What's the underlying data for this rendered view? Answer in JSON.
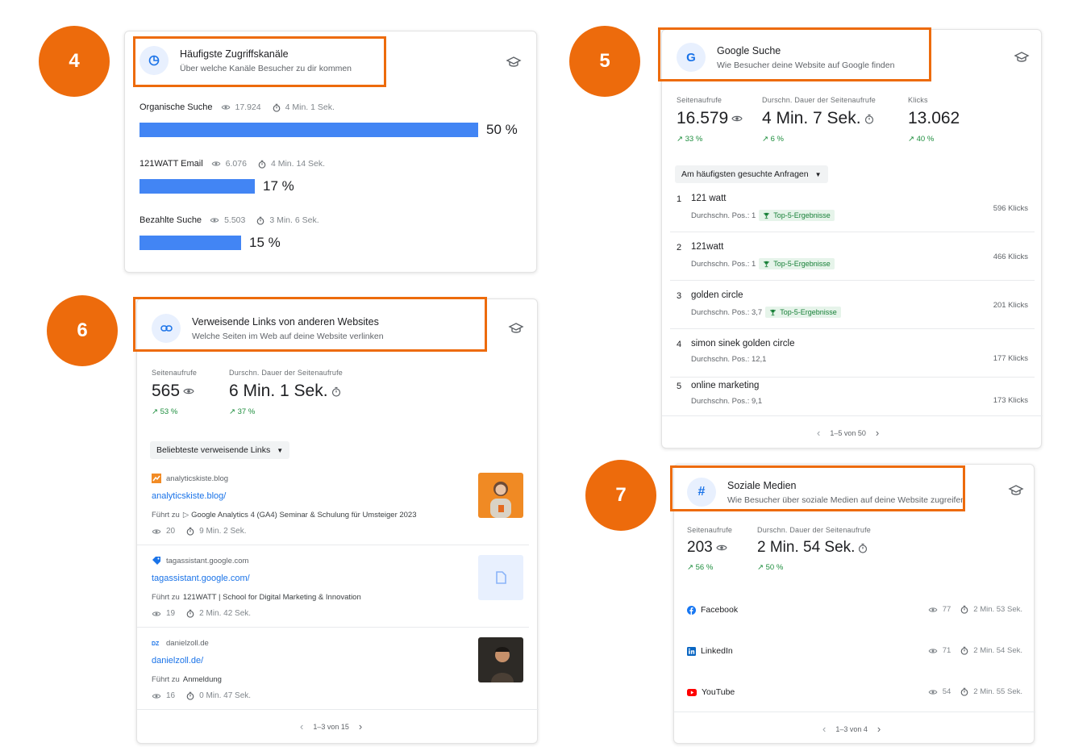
{
  "badges": [
    "4",
    "5",
    "6",
    "7"
  ],
  "channels": {
    "title": "Häufigste Zugriffskanäle",
    "subtitle": "Über welche Kanäle Besucher zu dir kommen",
    "items": [
      {
        "name": "Organische Suche",
        "views": "17.924",
        "duration": "4 Min. 1 Sek.",
        "percent_label": "50 %",
        "share": 0.5
      },
      {
        "name": "121WATT Email",
        "views": "6.076",
        "duration": "4 Min. 14 Sek.",
        "percent_label": "17 %",
        "share": 0.17
      },
      {
        "name": "Bezahlte Suche",
        "views": "5.503",
        "duration": "3 Min. 6 Sek.",
        "percent_label": "15 %",
        "share": 0.15
      }
    ],
    "colors": {
      "bar": "#4285f4"
    }
  },
  "google": {
    "icon_letter": "G",
    "title": "Google Suche",
    "subtitle": "Wie Besucher deine Website auf Google finden",
    "metrics": [
      {
        "label": "Seitenaufrufe",
        "value": "16.579",
        "trend": "33 %"
      },
      {
        "label": "Durschn. Dauer der Seitenaufrufe",
        "value": "4 Min. 7 Sek.",
        "trend": "6 %"
      },
      {
        "label": "Klicks",
        "value": "13.062",
        "trend": "40 %"
      }
    ],
    "dropdown": "Am häufigsten gesuchte Anfragen",
    "queries": [
      {
        "rank": "1",
        "term": "121 watt",
        "pos": "Durchschn. Pos.: 1",
        "tag": "Top-5-Ergebnisse",
        "clicks": "596 Klicks"
      },
      {
        "rank": "2",
        "term": "121watt",
        "pos": "Durchschn. Pos.: 1",
        "tag": "Top-5-Ergebnisse",
        "clicks": "466 Klicks"
      },
      {
        "rank": "3",
        "term": "golden circle",
        "pos": "Durchschn. Pos.: 3,7",
        "tag": "Top-5-Ergebnisse",
        "clicks": "201 Klicks"
      },
      {
        "rank": "4",
        "term": "simon sinek golden circle",
        "pos": "Durchschn. Pos.: 12,1",
        "tag": "",
        "clicks": "177 Klicks"
      },
      {
        "rank": "5",
        "term": "online marketing",
        "pos": "Durchschn. Pos.: 9,1",
        "tag": "",
        "clicks": "173 Klicks"
      }
    ],
    "pager": "1–5 von 50"
  },
  "referrals": {
    "title": "Verweisende Links von anderen Websites",
    "subtitle": "Welche Seiten im Web auf deine Website verlinken",
    "metrics": [
      {
        "label": "Seitenaufrufe",
        "value": "565",
        "trend": "53 %"
      },
      {
        "label": "Durschn. Dauer der Seitenaufrufe",
        "value": "6 Min. 1 Sek.",
        "trend": "37 %"
      }
    ],
    "dropdown": "Beliebteste verweisende Links",
    "leads_to_label": "Führt zu",
    "items": [
      {
        "site": "analyticskiste.blog",
        "link": "analyticskiste.blog/",
        "target": "Google Analytics 4 (GA4) Seminar & Schulung für Umsteiger 2023",
        "views": "20",
        "duration": "9 Min. 2 Sek."
      },
      {
        "site": "tagassistant.google.com",
        "link": "tagassistant.google.com/",
        "target": "121WATT | School for Digital Marketing & Innovation",
        "views": "19",
        "duration": "2 Min. 42 Sek."
      },
      {
        "site": "danielzoll.de",
        "link": "danielzoll.de/",
        "target": "Anmeldung",
        "views": "16",
        "duration": "0 Min. 47 Sek."
      }
    ],
    "pager": "1–3 von 15"
  },
  "social": {
    "title": "Soziale Medien",
    "subtitle": "Wie Besucher über soziale Medien auf deine Website zugreifen",
    "metrics": [
      {
        "label": "Seitenaufrufe",
        "value": "203",
        "trend": "56 %"
      },
      {
        "label": "Durschn. Dauer der Seitenaufrufe",
        "value": "2 Min. 54 Sek.",
        "trend": "50 %"
      }
    ],
    "items": [
      {
        "name": "Facebook",
        "views": "77",
        "duration": "2 Min. 53 Sek."
      },
      {
        "name": "LinkedIn",
        "views": "71",
        "duration": "2 Min. 54 Sek."
      },
      {
        "name": "YouTube",
        "views": "54",
        "duration": "2 Min. 55 Sek."
      }
    ],
    "pager": "1–3 von 4"
  }
}
